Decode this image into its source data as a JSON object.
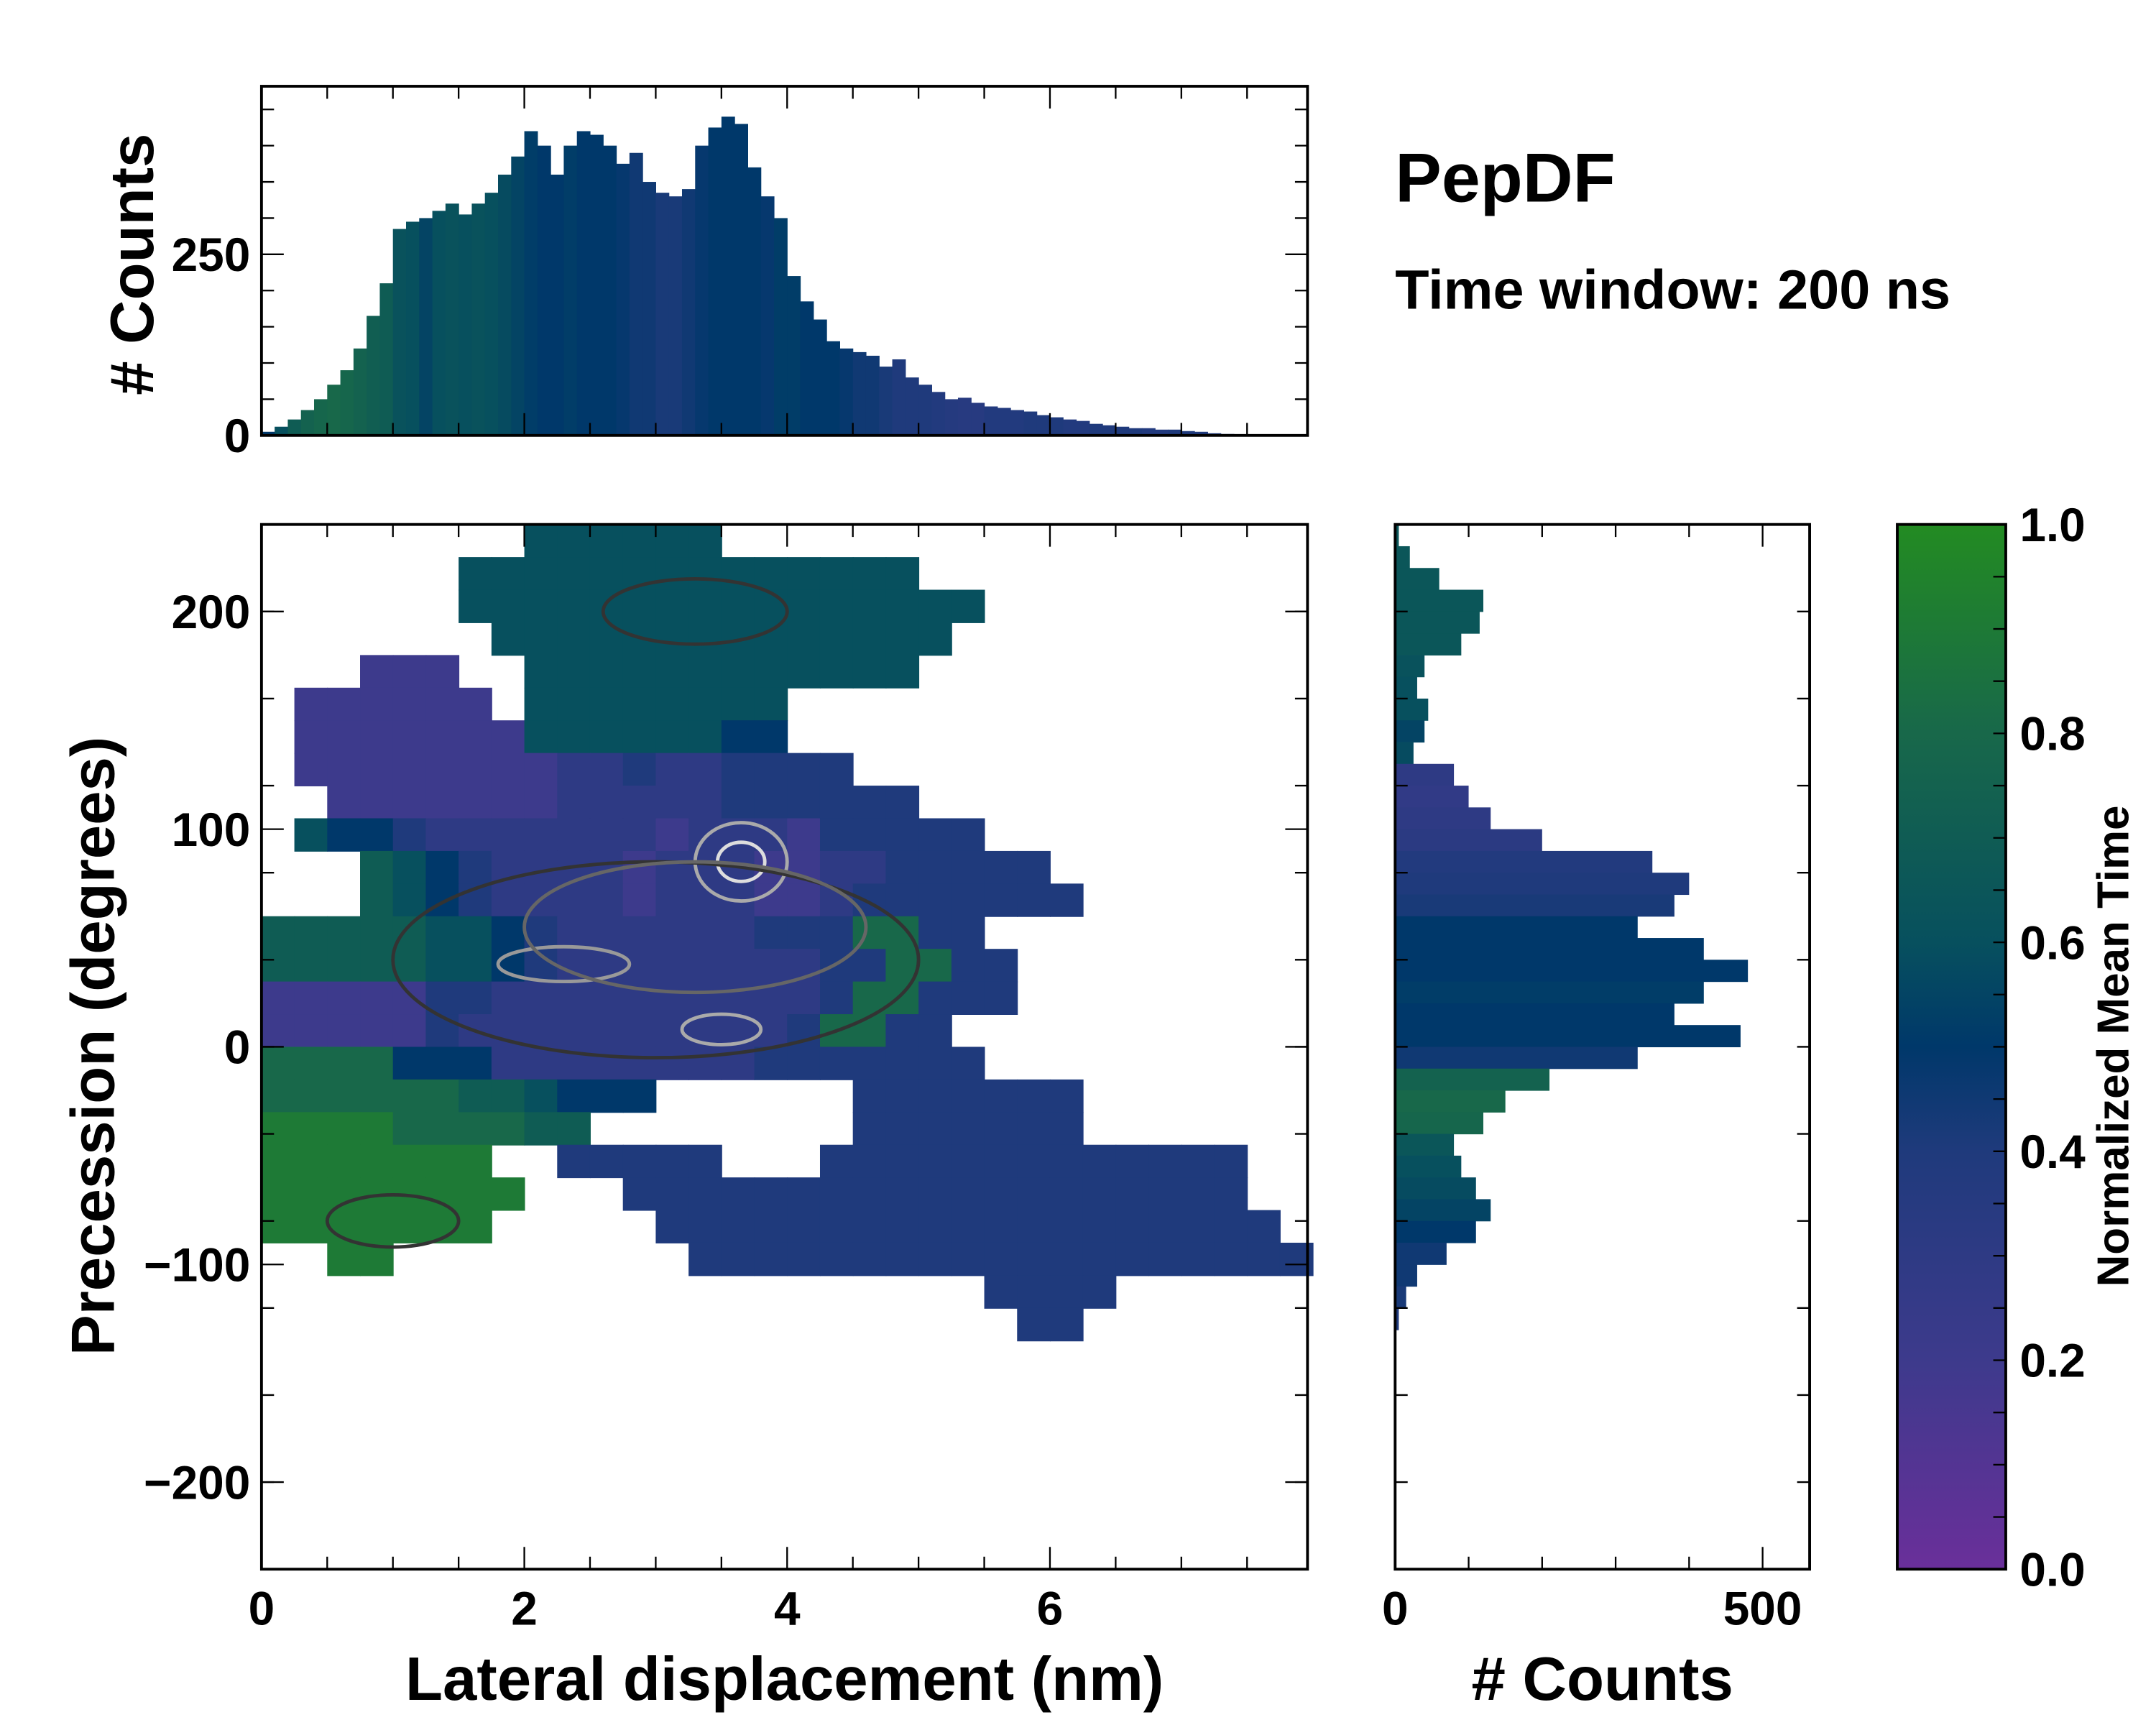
{
  "title": "PepDF",
  "subtitle": "Time window: 200 ns",
  "chart_data": [
    {
      "id": "top_histogram",
      "type": "bar",
      "ylabel": "# Counts",
      "xlim": [
        0,
        7.96
      ],
      "ylim": [
        0,
        482
      ],
      "yticks": [
        "0",
        "250"
      ],
      "ytick_values": [
        0,
        250
      ],
      "bin_width": 0.1,
      "x": [
        0.05,
        0.15,
        0.25,
        0.35,
        0.45,
        0.55,
        0.65,
        0.75,
        0.85,
        0.95,
        1.05,
        1.15,
        1.25,
        1.35,
        1.45,
        1.55,
        1.65,
        1.75,
        1.85,
        1.95,
        2.05,
        2.15,
        2.25,
        2.35,
        2.45,
        2.55,
        2.65,
        2.75,
        2.85,
        2.95,
        3.05,
        3.15,
        3.25,
        3.35,
        3.45,
        3.55,
        3.65,
        3.75,
        3.85,
        3.95,
        4.05,
        4.15,
        4.25,
        4.35,
        4.45,
        4.55,
        4.65,
        4.75,
        4.85,
        4.95,
        5.05,
        5.15,
        5.25,
        5.35,
        5.45,
        5.55,
        5.65,
        5.75,
        5.85,
        5.95,
        6.05,
        6.15,
        6.25,
        6.35,
        6.45,
        6.55,
        6.65,
        6.75,
        6.85,
        6.95,
        7.05,
        7.15,
        7.25,
        7.35,
        7.45
      ],
      "counts": [
        5,
        12,
        22,
        35,
        50,
        70,
        90,
        120,
        165,
        210,
        285,
        295,
        300,
        310,
        320,
        305,
        320,
        335,
        360,
        385,
        420,
        400,
        360,
        400,
        420,
        415,
        400,
        375,
        390,
        350,
        335,
        330,
        340,
        400,
        425,
        440,
        430,
        370,
        330,
        300,
        220,
        185,
        160,
        130,
        120,
        115,
        110,
        95,
        105,
        80,
        70,
        60,
        50,
        52,
        45,
        40,
        38,
        35,
        33,
        28,
        25,
        22,
        20,
        16,
        14,
        12,
        10,
        10,
        8,
        8,
        6,
        5,
        3,
        2,
        1
      ],
      "mean_time": [
        0.5,
        0.6,
        0.7,
        0.75,
        0.78,
        0.8,
        0.78,
        0.75,
        0.72,
        0.7,
        0.62,
        0.6,
        0.55,
        0.6,
        0.62,
        0.6,
        0.62,
        0.6,
        0.58,
        0.55,
        0.52,
        0.5,
        0.5,
        0.52,
        0.5,
        0.5,
        0.5,
        0.48,
        0.45,
        0.45,
        0.42,
        0.42,
        0.45,
        0.48,
        0.5,
        0.5,
        0.5,
        0.5,
        0.48,
        0.52,
        0.52,
        0.5,
        0.5,
        0.5,
        0.48,
        0.45,
        0.45,
        0.42,
        0.4,
        0.4,
        0.4,
        0.38,
        0.36,
        0.35,
        0.35,
        0.38,
        0.38,
        0.38,
        0.4,
        0.4,
        0.4,
        0.38,
        0.38,
        0.4,
        0.4,
        0.4,
        0.4,
        0.38,
        0.38,
        0.4,
        0.4,
        0.4,
        0.4,
        0.4,
        0.4
      ]
    },
    {
      "id": "main_heatmap",
      "type": "heatmap",
      "xlabel": "Lateral displacement (nm)",
      "ylabel": "Precession (degrees)",
      "xlim": [
        0,
        7.96
      ],
      "ylim": [
        -240,
        240
      ],
      "xticks": [
        "0",
        "2",
        "4",
        "6"
      ],
      "xtick_values": [
        0,
        2,
        4,
        6
      ],
      "yticks": [
        "−200",
        "−100",
        "0",
        "100",
        "200"
      ],
      "ytick_values": [
        -200,
        -100,
        0,
        100,
        200
      ],
      "cell_x": 0.25,
      "cell_y": 15,
      "grid_top": 240,
      "grid_encoding": "each char = mean time x10, '.' = empty; rows from top",
      "grid": [
        "........666666..................",
        "......66666666666666............",
        "......6666666666666666..........",
        ".......66666666666666...........",
        "...222..666666666666............",
        ".222222.66666666................",
        ".222222266666655................",
        ".22222222334334444..............",
        "..222222233333444444............",
        ".655433333332333244444..........",
        "...765433332333223344444........",
        "...7654333323332234444444.......",
        "7777766543333334448844..........",
        "77777665433333333448844.........",
        "22222443333333333488444.........",
        "222224333333333348844...........",
        "8888555333333334444444..........",
        "888888776555......4444444.......",
        "9999888877........4444444.......",
        "9999999..44444...4444444444444..",
        "99999999...4444444444444444444..",
        "9999999.....4444444444444444444.",
        "..99.........4444444444444444444",
        "......................4444......",
        ".......................44......."
      ],
      "contours": [
        {
          "x": 3.65,
          "y": 85,
          "rx": 0.35,
          "ry": 18,
          "shade": "#aaaaaa"
        },
        {
          "x": 3.65,
          "y": 85,
          "rx": 0.18,
          "ry": 9,
          "shade": "#dddddd"
        },
        {
          "x": 3.5,
          "y": 8,
          "rx": 0.3,
          "ry": 7,
          "shade": "#aaaaaa"
        },
        {
          "x": 2.3,
          "y": 38,
          "rx": 0.5,
          "ry": 8,
          "shade": "#999999"
        },
        {
          "x": 3.0,
          "y": 40,
          "rx": 2.0,
          "ry": 45,
          "shade": "#333333"
        },
        {
          "x": 3.3,
          "y": 55,
          "rx": 1.3,
          "ry": 30,
          "shade": "#666666"
        },
        {
          "x": 3.3,
          "y": 200,
          "rx": 0.7,
          "ry": 15,
          "shade": "#333333"
        },
        {
          "x": 1.0,
          "y": -80,
          "rx": 0.5,
          "ry": 12,
          "shade": "#333333"
        }
      ]
    },
    {
      "id": "right_histogram",
      "type": "bar",
      "orientation": "horizontal",
      "xlabel": "# Counts",
      "xlim": [
        0,
        564
      ],
      "xticks": [
        "0",
        "500"
      ],
      "xtick_values": [
        0,
        500
      ],
      "bin_height": 10,
      "y": [
        235,
        225,
        215,
        205,
        195,
        185,
        175,
        165,
        155,
        145,
        135,
        125,
        115,
        105,
        95,
        85,
        75,
        65,
        55,
        45,
        35,
        25,
        15,
        5,
        -5,
        -15,
        -25,
        -35,
        -45,
        -55,
        -65,
        -75,
        -85,
        -95,
        -105,
        -115,
        -125
      ],
      "counts": [
        5,
        20,
        60,
        120,
        115,
        90,
        40,
        30,
        45,
        40,
        25,
        80,
        100,
        130,
        200,
        350,
        400,
        380,
        330,
        420,
        480,
        420,
        380,
        470,
        330,
        210,
        150,
        120,
        80,
        90,
        110,
        130,
        110,
        70,
        30,
        15,
        5
      ],
      "mean_time": [
        0.65,
        0.65,
        0.65,
        0.65,
        0.65,
        0.65,
        0.62,
        0.6,
        0.6,
        0.55,
        0.58,
        0.3,
        0.28,
        0.3,
        0.32,
        0.38,
        0.4,
        0.42,
        0.5,
        0.5,
        0.5,
        0.52,
        0.5,
        0.5,
        0.45,
        0.75,
        0.8,
        0.78,
        0.65,
        0.6,
        0.58,
        0.55,
        0.5,
        0.45,
        0.45,
        0.42,
        0.4
      ]
    },
    {
      "id": "colorbar",
      "type": "colorbar",
      "label": "Normalized Mean Time",
      "range": [
        0,
        1
      ],
      "ticks": [
        "0.0",
        "0.2",
        "0.4",
        "0.6",
        "0.8",
        "1.0"
      ],
      "tick_values": [
        0,
        0.2,
        0.4,
        0.6,
        0.8,
        1.0
      ],
      "stops": [
        {
          "v": 0.0,
          "color": "#6a2f9a"
        },
        {
          "v": 0.2,
          "color": "#3d3a8c"
        },
        {
          "v": 0.4,
          "color": "#1f3a7c"
        },
        {
          "v": 0.5,
          "color": "#00386a"
        },
        {
          "v": 0.6,
          "color": "#07505e"
        },
        {
          "v": 0.8,
          "color": "#18684a"
        },
        {
          "v": 1.0,
          "color": "#238b22"
        }
      ]
    }
  ]
}
